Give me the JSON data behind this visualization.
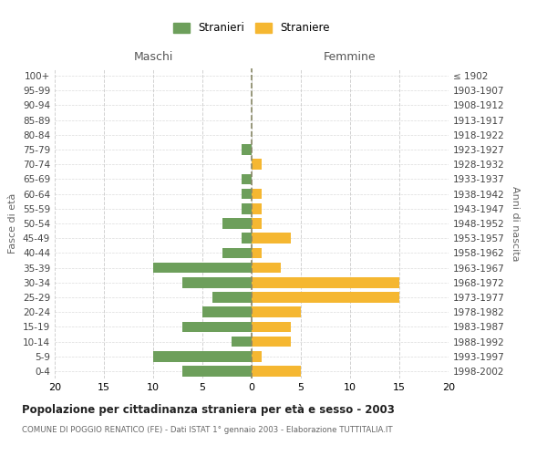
{
  "age_groups": [
    "0-4",
    "5-9",
    "10-14",
    "15-19",
    "20-24",
    "25-29",
    "30-34",
    "35-39",
    "40-44",
    "45-49",
    "50-54",
    "55-59",
    "60-64",
    "65-69",
    "70-74",
    "75-79",
    "80-84",
    "85-89",
    "90-94",
    "95-99",
    "100+"
  ],
  "birth_years": [
    "1998-2002",
    "1993-1997",
    "1988-1992",
    "1983-1987",
    "1978-1982",
    "1973-1977",
    "1968-1972",
    "1963-1967",
    "1958-1962",
    "1953-1957",
    "1948-1952",
    "1943-1947",
    "1938-1942",
    "1933-1937",
    "1928-1932",
    "1923-1927",
    "1918-1922",
    "1913-1917",
    "1908-1912",
    "1903-1907",
    "≤ 1902"
  ],
  "maschi": [
    7,
    10,
    2,
    7,
    5,
    4,
    7,
    10,
    3,
    1,
    3,
    1,
    1,
    1,
    0,
    1,
    0,
    0,
    0,
    0,
    0
  ],
  "femmine": [
    5,
    1,
    4,
    4,
    5,
    15,
    15,
    3,
    1,
    4,
    1,
    1,
    1,
    0,
    1,
    0,
    0,
    0,
    0,
    0,
    0
  ],
  "male_color": "#6d9f5b",
  "female_color": "#f5b731",
  "background_color": "#ffffff",
  "grid_color": "#cccccc",
  "title": "Popolazione per cittadinanza straniera per età e sesso - 2003",
  "subtitle": "COMUNE DI POGGIO RENATICO (FE) - Dati ISTAT 1° gennaio 2003 - Elaborazione TUTTITALIA.IT",
  "xlabel_left": "Maschi",
  "xlabel_right": "Femmine",
  "ylabel_left": "Fasce di età",
  "ylabel_right": "Anni di nascita",
  "xlim": 20,
  "legend_stranieri": "Stranieri",
  "legend_straniere": "Straniere"
}
